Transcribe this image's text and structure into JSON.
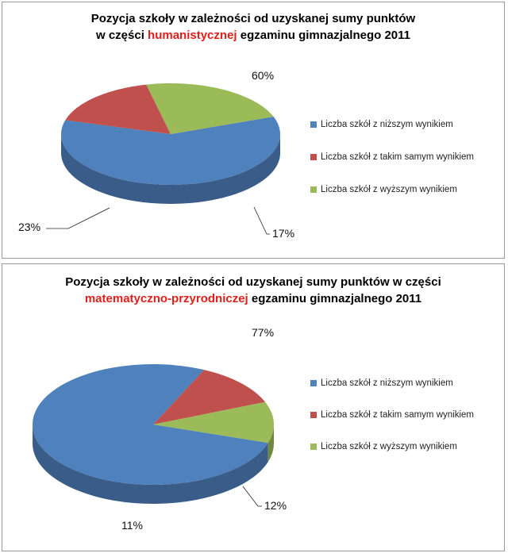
{
  "chart_data": [
    {
      "type": "pie",
      "title_line1": "Pozycja szkoły w zależności od uzyskanej sumy punktów",
      "title_line2_prefix": "w części ",
      "title_line2_accent": "humanistycznej",
      "title_line2_suffix": " egzaminu gimnazjalnego 2011",
      "categories": [
        "Liczba szkół z niższym wynikiem",
        "Liczba szkół z takim samym wynikiem",
        "Liczba szkół z wyższym wynikiem"
      ],
      "values": [
        60,
        17,
        23
      ],
      "data_labels": [
        "60%",
        "17%",
        "23%"
      ],
      "colors": [
        "#4f81bd",
        "#c0504d",
        "#9bbb59"
      ],
      "legend_position": "right"
    },
    {
      "type": "pie",
      "title_line1": "Pozycja szkoły w zależności od uzyskanej sumy punktów w części",
      "title_line2_accent": "matematyczno-przyrodniczej",
      "title_line2_suffix": " egzaminu gimnazjalnego 2011",
      "categories": [
        "Liczba szkół z niższym wynikiem",
        "Liczba szkół z takim samym wynikiem",
        "Liczba szkół z wyższym wynikiem"
      ],
      "values": [
        77,
        12,
        11
      ],
      "data_labels": [
        "77%",
        "12%",
        "11%"
      ],
      "colors": [
        "#4f81bd",
        "#c0504d",
        "#9bbb59"
      ],
      "legend_position": "right"
    }
  ]
}
